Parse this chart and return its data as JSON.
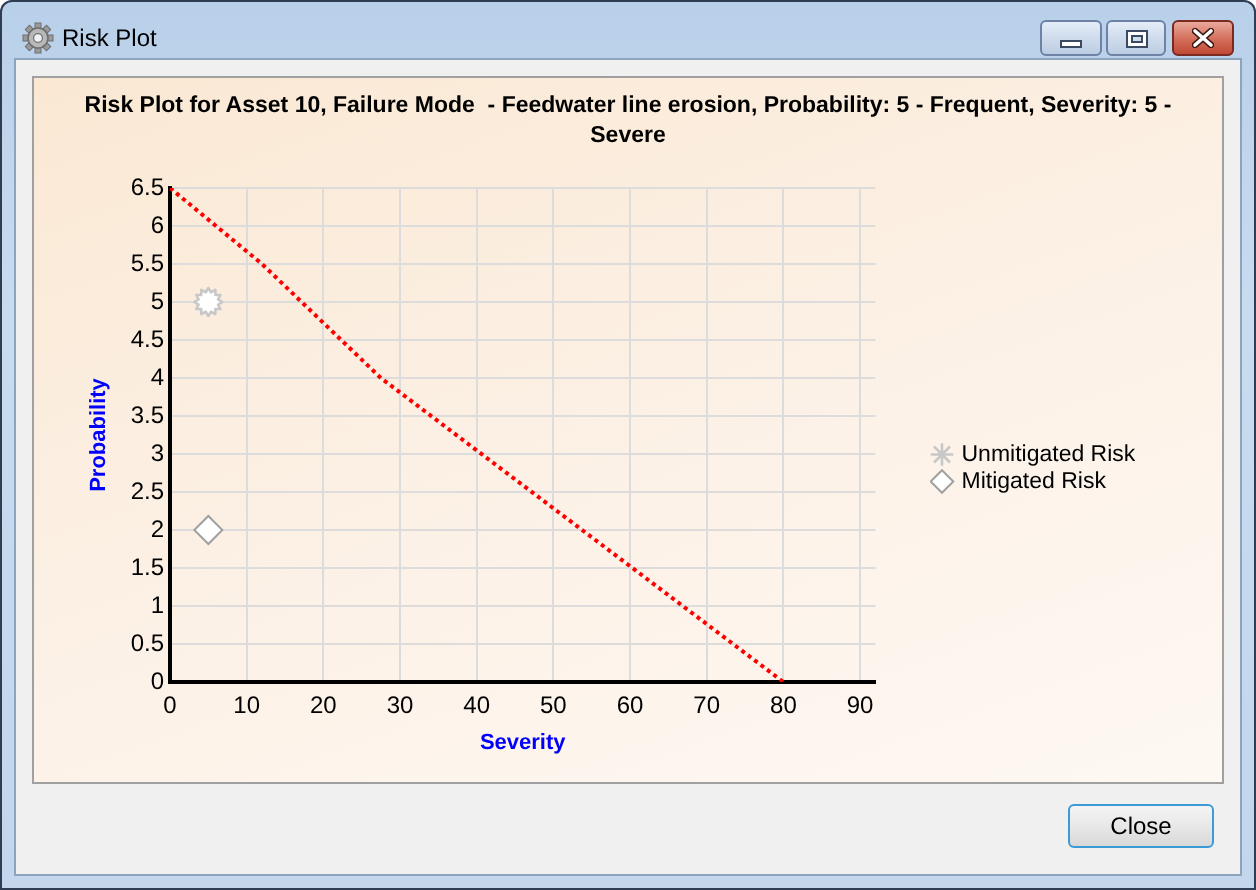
{
  "chart_data": {
    "type": "scatter",
    "title": "Risk Plot for Asset 10, Failure Mode  - Feedwater line erosion, Probability: 5 - Frequent, Severity: 5 - Severe",
    "xlabel": "Severity",
    "ylabel": "Probability",
    "annotations": [
      "Risk Plot",
      "Close"
    ],
    "xlim": [
      0,
      92
    ],
    "xticks": [
      0,
      10,
      20,
      30,
      40,
      50,
      60,
      70,
      80,
      90
    ],
    "ylim": [
      0,
      6.5
    ],
    "yticks": [
      0,
      0.5,
      1,
      1.5,
      2,
      2.5,
      3,
      3.5,
      4,
      4.5,
      5,
      5.5,
      6,
      6.5
    ],
    "grid": true,
    "legend": "right",
    "series": [
      {
        "type": "line",
        "x": [
          0,
          12,
          27.5,
          80
        ],
        "values": [
          6.5,
          5.5,
          4,
          0
        ],
        "color": "#ff0000",
        "marker": "none",
        "line_style": "dotted"
      },
      {
        "name": "Unmitigated Risk",
        "x": [
          5
        ],
        "values": [
          5
        ],
        "color": "#c8c8c8",
        "marker": "star"
      },
      {
        "name": "Mitigated Risk",
        "x": [
          5
        ],
        "values": [
          2
        ],
        "color": "#a0a0a0",
        "marker": "diamond"
      }
    ]
  }
}
